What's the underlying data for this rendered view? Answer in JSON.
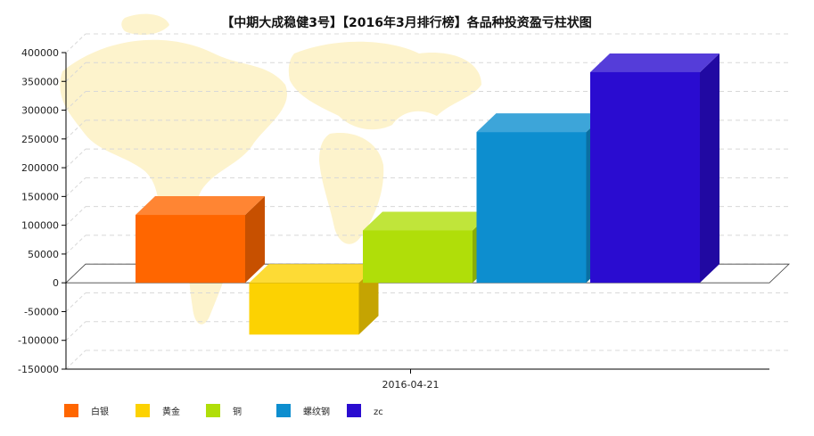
{
  "chart_data": {
    "type": "bar",
    "title": "【中期大成稳健3号】【2016年3月排行榜】各品种投资盈亏柱状图",
    "categories": [
      "2016-04-21"
    ],
    "series": [
      {
        "name": "白银",
        "values": [
          118000
        ],
        "color": "#ff6600"
      },
      {
        "name": "黄金",
        "values": [
          -90000
        ],
        "color": "#fcd202"
      },
      {
        "name": "铜",
        "values": [
          91000
        ],
        "color": "#b0de09"
      },
      {
        "name": "螺纹钢",
        "values": [
          262000
        ],
        "color": "#0d8ecf"
      },
      {
        "name": "zc",
        "values": [
          366000
        ],
        "color": "#2a0cd0"
      }
    ],
    "y_ticks": [
      "400000",
      "350000",
      "300000",
      "250000",
      "200000",
      "150000",
      "100000",
      "50000",
      "0",
      "-50000",
      "-100000",
      "-150000"
    ],
    "ylim": [
      -150000,
      400000
    ],
    "grid": true,
    "legend_position": "bottom-left",
    "style": "3d",
    "background": "world-map"
  }
}
